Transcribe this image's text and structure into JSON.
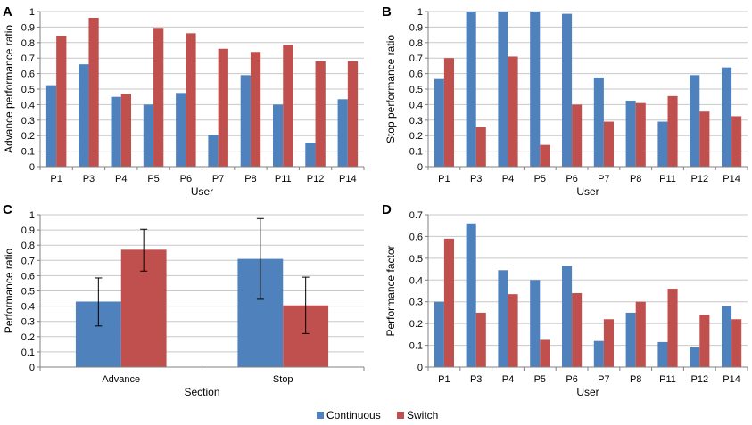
{
  "colors": {
    "continuous": "#4F81BD",
    "switch": "#C0504D",
    "grid": "#C8C8C8",
    "axis": "#808080",
    "errorbar": "#000000"
  },
  "legend": {
    "continuous": "Continuous",
    "switch": "Switch"
  },
  "chart_data": [
    {
      "panel": "A",
      "type": "bar",
      "title": "",
      "xlabel": "User",
      "ylabel": "Advance performance ratio",
      "ylim": [
        0,
        1
      ],
      "yticks": [
        "0",
        "0.1",
        "0.2",
        "0.3",
        "0.4",
        "0.5",
        "0.6",
        "0.7",
        "0.8",
        "0.9",
        "1"
      ],
      "categories": [
        "P1",
        "P3",
        "P4",
        "P5",
        "P6",
        "P7",
        "P8",
        "P11",
        "P12",
        "P14"
      ],
      "series": [
        {
          "name": "Continuous",
          "values": [
            0.525,
            0.66,
            0.45,
            0.4,
            0.475,
            0.205,
            0.59,
            0.4,
            0.155,
            0.435
          ]
        },
        {
          "name": "Switch",
          "values": [
            0.845,
            0.96,
            0.47,
            0.895,
            0.86,
            0.76,
            0.74,
            0.785,
            0.68,
            0.68
          ]
        }
      ]
    },
    {
      "panel": "B",
      "type": "bar",
      "title": "",
      "xlabel": "User",
      "ylabel": "Stop performance ratio",
      "ylim": [
        0,
        1
      ],
      "yticks": [
        "0",
        "0.1",
        "0.2",
        "0.3",
        "0.4",
        "0.5",
        "0.6",
        "0.7",
        "0.8",
        "0.9",
        "1"
      ],
      "categories": [
        "P1",
        "P3",
        "P4",
        "P5",
        "P6",
        "P7",
        "P8",
        "P11",
        "P12",
        "P14"
      ],
      "series": [
        {
          "name": "Continuous",
          "values": [
            0.565,
            1.0,
            1.0,
            1.0,
            0.985,
            0.575,
            0.425,
            0.29,
            0.59,
            0.64
          ]
        },
        {
          "name": "Switch",
          "values": [
            0.7,
            0.255,
            0.71,
            0.14,
            0.4,
            0.29,
            0.41,
            0.455,
            0.355,
            0.325
          ]
        }
      ]
    },
    {
      "panel": "C",
      "type": "bar",
      "title": "",
      "xlabel": "Section",
      "ylabel": "Performance ratio",
      "ylim": [
        0,
        1
      ],
      "yticks": [
        "0",
        "0.1",
        "0.2",
        "0.3",
        "0.4",
        "0.5",
        "0.6",
        "0.7",
        "0.8",
        "0.9",
        "1"
      ],
      "categories": [
        "Advance",
        "Stop"
      ],
      "series": [
        {
          "name": "Continuous",
          "values": [
            0.43,
            0.71
          ],
          "error_low": [
            0.27,
            0.445
          ],
          "error_high": [
            0.585,
            0.975
          ]
        },
        {
          "name": "Switch",
          "values": [
            0.77,
            0.405
          ],
          "error_low": [
            0.63,
            0.22
          ],
          "error_high": [
            0.905,
            0.59
          ]
        }
      ]
    },
    {
      "panel": "D",
      "type": "bar",
      "title": "",
      "xlabel": "User",
      "ylabel": "Performance factor",
      "ylim": [
        0,
        0.7
      ],
      "yticks": [
        "0",
        "0.1",
        "0.2",
        "0.3",
        "0.4",
        "0.5",
        "0.6",
        "0.7"
      ],
      "categories": [
        "P1",
        "P3",
        "P4",
        "P5",
        "P6",
        "P7",
        "P8",
        "P11",
        "P12",
        "P14"
      ],
      "series": [
        {
          "name": "Continuous",
          "values": [
            0.3,
            0.66,
            0.445,
            0.4,
            0.465,
            0.12,
            0.25,
            0.115,
            0.09,
            0.28
          ]
        },
        {
          "name": "Switch",
          "values": [
            0.59,
            0.25,
            0.335,
            0.125,
            0.34,
            0.22,
            0.3,
            0.36,
            0.24,
            0.22
          ]
        }
      ]
    }
  ]
}
